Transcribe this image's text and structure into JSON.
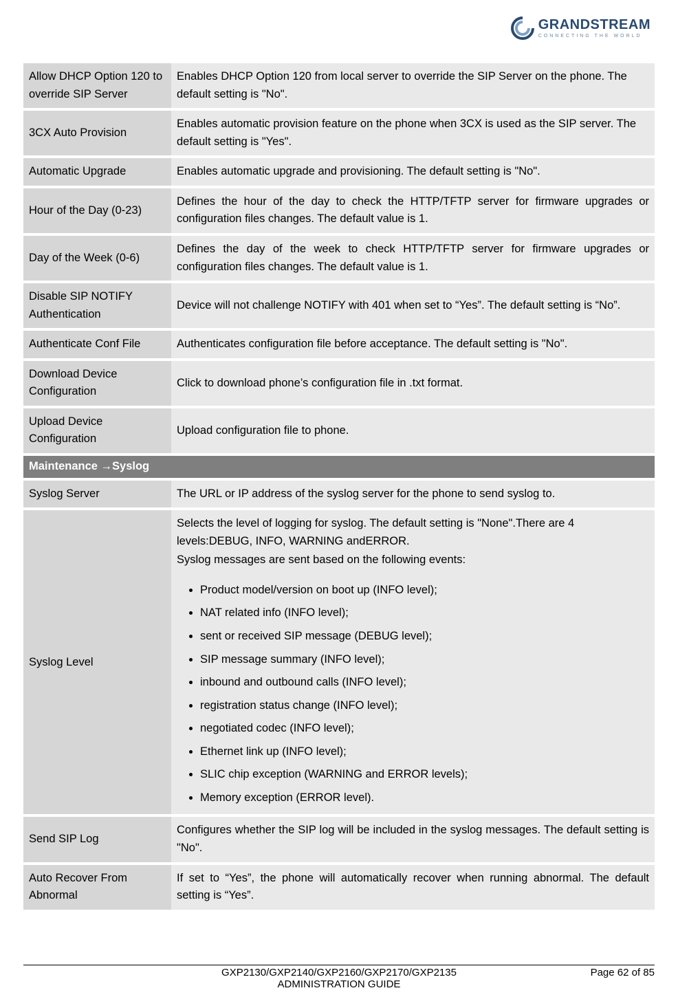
{
  "brand": {
    "name": "GRANDSTREAM",
    "tagline": "CONNECTING THE WORLD",
    "logo_colors": {
      "outer": "#2a4a70",
      "inner": "#7ea2c4"
    }
  },
  "rows": [
    {
      "label": "Allow DHCP Option 120 to override SIP Server",
      "desc": "Enables DHCP Option 120 from local server to override the SIP Server on the phone. The default setting is \"No\"."
    },
    {
      "label": "3CX Auto Provision",
      "desc": "Enables automatic provision feature on the phone when 3CX is used as the SIP server. The default setting is \"Yes\"."
    },
    {
      "label": "Automatic Upgrade",
      "desc": "Enables automatic upgrade and provisioning. The default setting is \"No\"."
    },
    {
      "label": "Hour of the Day (0-23)",
      "desc": "Defines the hour of the day to check the HTTP/TFTP server for firmware upgrades or configuration files changes. The default value is 1.",
      "justify": true
    },
    {
      "label": "Day of the Week (0-6)",
      "desc": "Defines the day of the week to check HTTP/TFTP server for firmware upgrades or configuration files changes. The default value is 1.",
      "justify": true
    },
    {
      "label": "Disable SIP NOTIFY Authentication",
      "desc": "Device will not challenge NOTIFY with 401 when set to “Yes”. The default setting is “No”.",
      "justify": true
    },
    {
      "label": "Authenticate Conf File",
      "desc": "Authenticates configuration file before acceptance. The default setting is \"No\".",
      "justify": true
    },
    {
      "label": "Download Device Configuration",
      "desc": "Click to download phone’s configuration file in .txt format."
    },
    {
      "label": "Upload Device Configuration",
      "desc": "Upload configuration file to phone."
    }
  ],
  "section_header": "Maintenance →Syslog",
  "syslog_rows": {
    "server": {
      "label": "Syslog Server",
      "desc": "The URL or IP address of the syslog server for the phone to send syslog to."
    },
    "level": {
      "label": "Syslog Level",
      "intro1": "Selects the level of logging for syslog. The default setting is \"None\".There are 4 levels:DEBUG, INFO, WARNING andERROR.",
      "intro2": "Syslog messages are sent based on the following events:",
      "items": [
        "Product model/version on boot up (INFO level);",
        "NAT related info (INFO level);",
        "sent or received SIP message (DEBUG level);",
        "SIP message summary (INFO level);",
        "inbound and outbound calls (INFO level);",
        "registration status change (INFO level);",
        "negotiated codec (INFO level);",
        "Ethernet link up (INFO level);",
        "SLIC chip exception (WARNING and ERROR levels);",
        "Memory exception (ERROR level)."
      ]
    },
    "sendsip": {
      "label": "Send SIP Log",
      "desc": "Configures whether the SIP log will be included in the syslog messages. The default setting is \"No\".",
      "justify": true
    },
    "autorecover": {
      "label": "Auto Recover From Abnormal",
      "desc": "If set to “Yes”, the phone will automatically recover when running abnormal. The default setting is “Yes”.",
      "justify": true
    }
  },
  "footer": {
    "title_line1": "GXP2130/GXP2140/GXP2160/GXP2170/GXP2135",
    "title_line2": "ADMINISTRATION GUIDE",
    "page": "Page 62 of 85"
  }
}
